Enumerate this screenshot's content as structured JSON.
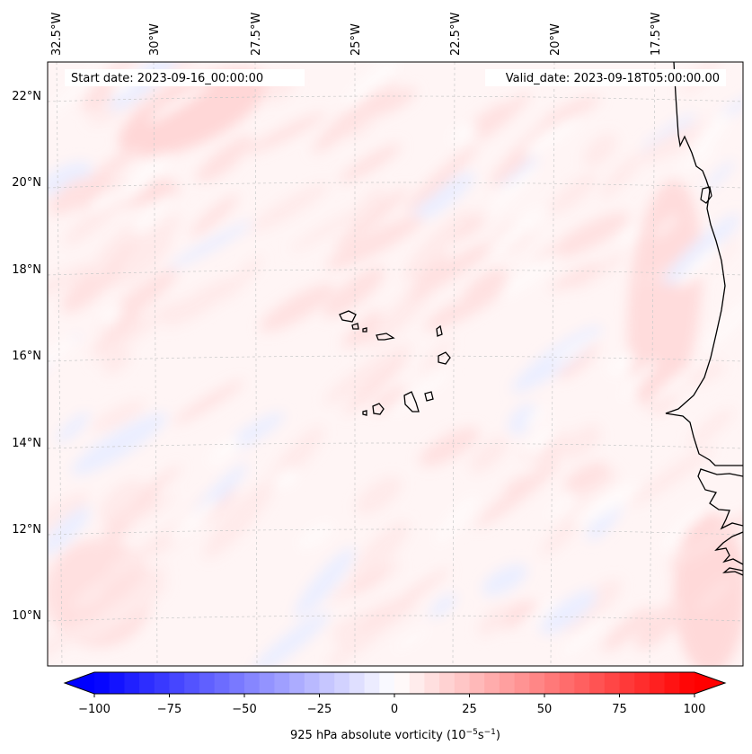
{
  "map": {
    "title_left": "Start date: 2023-09-16_00:00:00",
    "title_right": "Valid_date: 2023-09-18T05:00:00.00",
    "lon_labels": [
      "32.5°W",
      "30°W",
      "27.5°W",
      "25°W",
      "22.5°W",
      "20°W",
      "17.5°W"
    ],
    "lat_labels": [
      "22°N",
      "20°N",
      "18°N",
      "16°N",
      "14°N",
      "12°N",
      "10°N"
    ],
    "lon_values": [
      -32.5,
      -30,
      -27.5,
      -25,
      -22.5,
      -20,
      -17.5
    ],
    "lat_values": [
      22,
      20,
      18,
      16,
      14,
      12,
      10
    ],
    "gridlines": true
  },
  "colorbar": {
    "label_prefix": "925 hPa absolute vorticity (10",
    "label_exp1": "−5",
    "label_mid": "s",
    "label_exp2": "−1",
    "label_suffix": ")",
    "ticks": [
      "−100",
      "−75",
      "−50",
      "−25",
      "0",
      "25",
      "50",
      "75",
      "100"
    ],
    "tick_values": [
      -100,
      -75,
      -50,
      -25,
      0,
      25,
      50,
      75,
      100
    ],
    "min": -100,
    "max": 100,
    "levels": 40,
    "colormap": "bwr",
    "extend": "both"
  }
}
